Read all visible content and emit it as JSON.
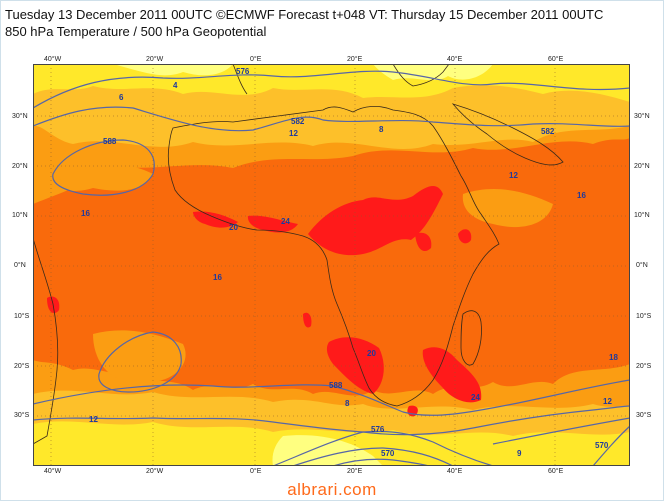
{
  "title": {
    "line1": "Tuesday 13 December 2011 00UTC ©ECMWF Forecast t+048 VT: Thursday 15 December 2011 00UTC",
    "line2": "850 hPa Temperature / 500 hPa Geopotential"
  },
  "axes": {
    "top_lon": [
      "40°W",
      "20°W",
      "0°E",
      "20°E",
      "40°E",
      "60°E"
    ],
    "bottom_lon": [
      "40°W",
      "20°W",
      "0°E",
      "20°E",
      "40°E",
      "60°E"
    ],
    "left_lat": [
      "30°N",
      "20°N",
      "10°N",
      "0°N",
      "10°S",
      "20°S",
      "30°S"
    ],
    "right_lat": [
      "30°N",
      "20°N",
      "10°N",
      "0°N",
      "10°S",
      "20°S",
      "30°S"
    ]
  },
  "contour_labels": [
    "576",
    "4",
    "6",
    "582",
    "12",
    "588",
    "16",
    "20",
    "24",
    "8",
    "12",
    "16",
    "582",
    "588",
    "576",
    "570",
    "12",
    "8",
    "18",
    "24",
    "20",
    "16",
    "12",
    "9",
    "570"
  ],
  "colors": {
    "deep_red": "#ff1a1a",
    "dark_orange": "#f96a0c",
    "orange": "#fb9d12",
    "light_orange": "#fdc02a",
    "yellow": "#ffe82a",
    "pale_yellow": "#ffff80",
    "contour": "#5766a6"
  },
  "watermark": "albrari.com"
}
